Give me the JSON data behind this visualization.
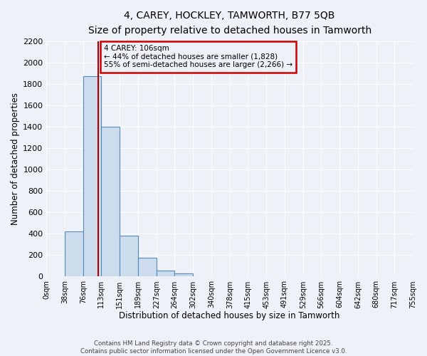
{
  "title_line1": "4, CAREY, HOCKLEY, TAMWORTH, B77 5QB",
  "title_line2": "Size of property relative to detached houses in Tamworth",
  "xlabel": "Distribution of detached houses by size in Tamworth",
  "ylabel": "Number of detached properties",
  "annotation_title": "4 CAREY: 106sqm",
  "annotation_line1": "← 44% of detached houses are smaller (1,828)",
  "annotation_line2": "55% of semi-detached houses are larger (2,266) →",
  "property_size_sqm": 106,
  "footer_line1": "Contains HM Land Registry data © Crown copyright and database right 2025.",
  "footer_line2": "Contains public sector information licensed under the Open Government Licence v3.0.",
  "bar_color": "#ccdcec",
  "bar_edge_color": "#5588bb",
  "vline_color": "#aa0000",
  "annotation_box_color": "#cc0000",
  "background_color": "#eef2f8",
  "grid_color": "#ffffff",
  "ylim": [
    0,
    2200
  ],
  "bin_edges": [
    0,
    38,
    76,
    113,
    151,
    189,
    227,
    264,
    302,
    340,
    378,
    415,
    453,
    491,
    529,
    566,
    604,
    642,
    680,
    717,
    755
  ],
  "bar_heights": [
    0,
    420,
    1870,
    1400,
    380,
    175,
    55,
    30,
    0,
    0,
    0,
    0,
    0,
    0,
    0,
    0,
    0,
    0,
    0,
    0
  ]
}
